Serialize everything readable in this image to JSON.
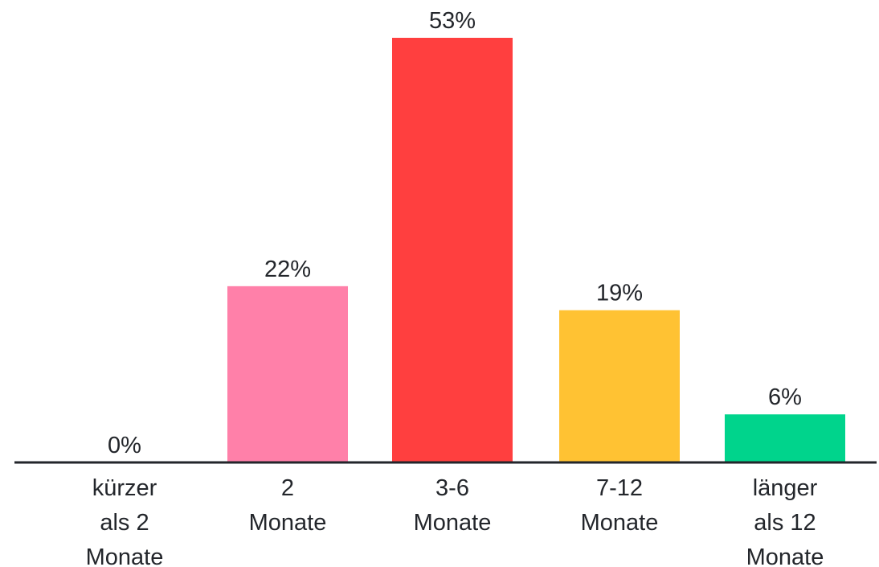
{
  "chart_data": {
    "type": "bar",
    "categories": [
      [
        "kürzer",
        "als 2",
        "Monate"
      ],
      [
        "2",
        "Monate"
      ],
      [
        "3-6",
        "Monate"
      ],
      [
        "7-12",
        "Monate"
      ],
      [
        "länger",
        "als 12",
        "Monate"
      ]
    ],
    "values": [
      0,
      22,
      53,
      19,
      6
    ],
    "value_labels": [
      "0%",
      "22%",
      "53%",
      "19%",
      "6%"
    ],
    "colors": [
      "#ffffff",
      "#ff80a9",
      "#ff3f3f",
      "#ffc233",
      "#00d48c"
    ],
    "axis_color": "#23262b",
    "title": "",
    "xlabel": "",
    "ylabel": "",
    "ylim": [
      0,
      53
    ],
    "grid": false,
    "legend": "none"
  }
}
